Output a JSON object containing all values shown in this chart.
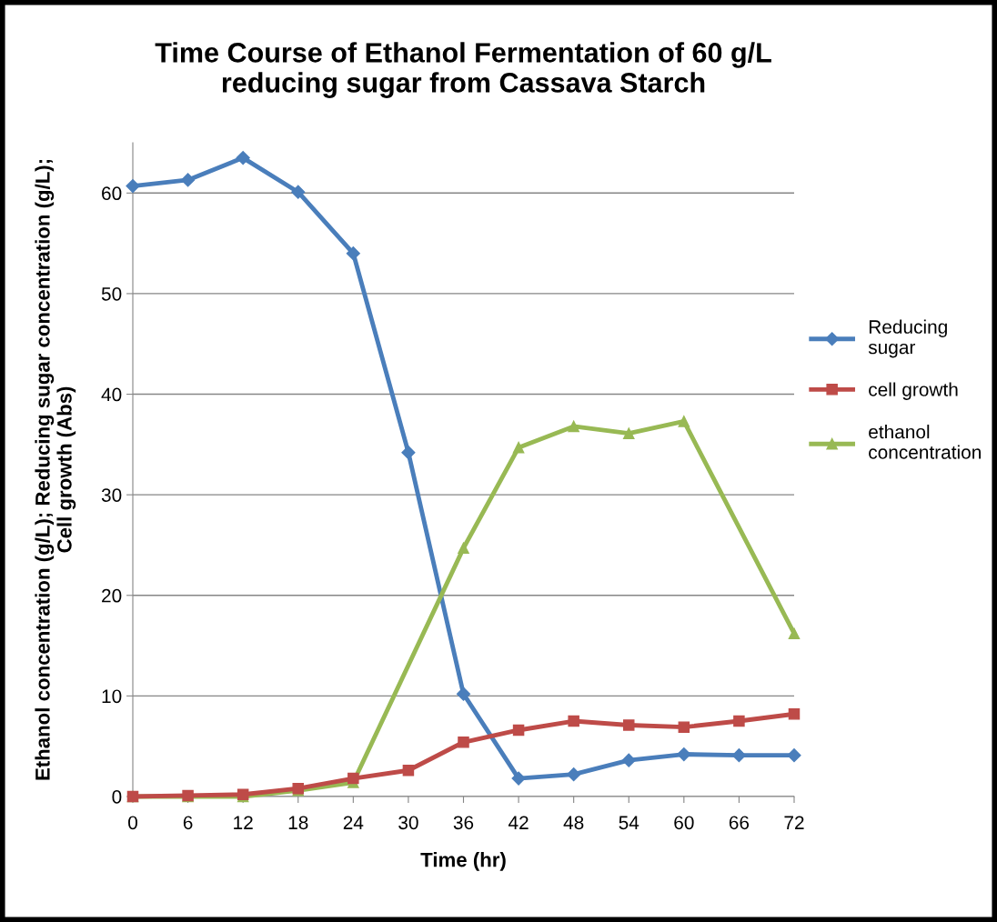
{
  "chart_data": {
    "type": "line",
    "title": "Time Course of Ethanol Fermentation of 60 g/L\nreducing sugar from Cassava Starch",
    "xlabel": "Time (hr)",
    "ylabel": "Ethanol concentration (g/L); Reducing sugar concentration (g/L);\nCell growth (Abs)",
    "x": [
      0,
      6,
      12,
      18,
      24,
      30,
      36,
      42,
      48,
      54,
      60,
      66,
      72
    ],
    "series": [
      {
        "name": "Reducing sugar",
        "color": "#4a7ebb",
        "marker": "diamond",
        "values": [
          60.7,
          61.3,
          63.5,
          60.1,
          54.0,
          34.2,
          10.2,
          1.8,
          2.2,
          3.6,
          4.2,
          4.1,
          4.1
        ]
      },
      {
        "name": "cell growth",
        "color": "#be4b48",
        "marker": "square",
        "values": [
          0,
          0.1,
          0.2,
          0.8,
          1.8,
          2.6,
          5.4,
          6.6,
          7.5,
          7.1,
          6.9,
          7.5,
          8.2
        ]
      },
      {
        "name": "ethanol concentration",
        "color": "#98b954",
        "marker": "triangle",
        "x": [
          0,
          6,
          12,
          18,
          24,
          36,
          42,
          48,
          54,
          60,
          72
        ],
        "values": [
          0,
          0,
          0,
          0.6,
          1.4,
          24.7,
          34.7,
          36.8,
          36.1,
          37.3,
          16.2
        ]
      }
    ],
    "xlim": [
      0,
      72
    ],
    "xticks": [
      0,
      6,
      12,
      18,
      24,
      30,
      36,
      42,
      48,
      54,
      60,
      66,
      72
    ],
    "ylim": [
      0,
      65
    ],
    "yticks": [
      0,
      10,
      20,
      30,
      40,
      50,
      60
    ],
    "grid": "y",
    "legend": "right",
    "line_style": "solid"
  }
}
